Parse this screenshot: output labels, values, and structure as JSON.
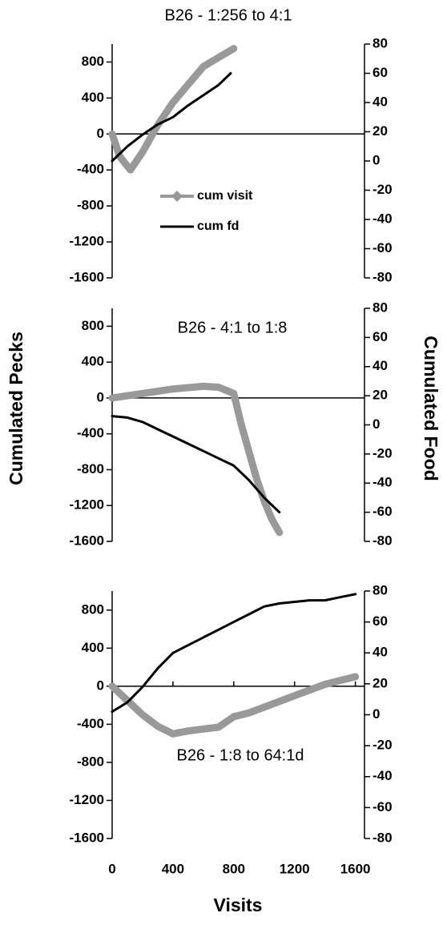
{
  "chart_data": [
    {
      "type": "line",
      "title": "B26 - 1:256 to 4:1",
      "xlim": [
        0,
        1660
      ],
      "ylim": [
        -1600,
        1000
      ],
      "yticks": [
        -1600,
        -1200,
        -800,
        -400,
        0,
        400,
        800
      ],
      "y2lim": [
        -80,
        80
      ],
      "y2ticks": [
        -80,
        -60,
        -40,
        -20,
        0,
        20,
        40,
        60,
        80
      ],
      "legend": "center",
      "series": [
        {
          "name": "cum visit",
          "color": "#999999",
          "axis": "y",
          "x": [
            0,
            50,
            120,
            200,
            300,
            400,
            500,
            600,
            700,
            800
          ],
          "values": [
            0,
            -250,
            -400,
            -200,
            100,
            350,
            550,
            750,
            850,
            950
          ]
        },
        {
          "name": "cum fd",
          "color": "#000000",
          "axis": "y2",
          "x": [
            0,
            100,
            200,
            300,
            400,
            500,
            600,
            700,
            780
          ],
          "values": [
            0,
            10,
            18,
            25,
            30,
            38,
            45,
            52,
            60
          ]
        }
      ]
    },
    {
      "type": "line",
      "title": "B26 - 4:1 to 1:8",
      "ylabel": "Cumulated Pecks",
      "y2label": "Cumulated Food",
      "xlim": [
        0,
        1660
      ],
      "ylim": [
        -1600,
        1000
      ],
      "yticks": [
        -1600,
        -1200,
        -800,
        -400,
        0,
        400,
        800
      ],
      "y2lim": [
        -80,
        80
      ],
      "y2ticks": [
        -80,
        -60,
        -40,
        -20,
        0,
        20,
        40,
        60,
        80
      ],
      "series": [
        {
          "color": "#999999",
          "axis": "y",
          "x": [
            0,
            200,
            400,
            600,
            700,
            800,
            850,
            900,
            950,
            1000,
            1050,
            1100
          ],
          "values": [
            0,
            50,
            100,
            130,
            120,
            50,
            -300,
            -600,
            -900,
            -1150,
            -1350,
            -1500
          ]
        },
        {
          "color": "#000000",
          "axis": "y2",
          "x": [
            0,
            100,
            200,
            300,
            400,
            500,
            600,
            700,
            800,
            900,
            1000,
            1100
          ],
          "values": [
            6,
            5,
            2,
            -3,
            -8,
            -13,
            -18,
            -23,
            -28,
            -38,
            -50,
            -60
          ]
        }
      ]
    },
    {
      "type": "line",
      "title": "B26 - 1:8 to 64:1d",
      "xlabel": "Visits",
      "xlim": [
        0,
        1660
      ],
      "xticks": [
        0,
        400,
        800,
        1200,
        1600
      ],
      "ylim": [
        -1600,
        1000
      ],
      "yticks": [
        -1600,
        -1200,
        -800,
        -400,
        0,
        400,
        800
      ],
      "y2lim": [
        -80,
        80
      ],
      "y2ticks": [
        -80,
        -60,
        -40,
        -20,
        0,
        20,
        40,
        60,
        80
      ],
      "series": [
        {
          "color": "#999999",
          "axis": "y",
          "x": [
            0,
            100,
            200,
            300,
            400,
            500,
            600,
            700,
            800,
            900,
            1000,
            1100,
            1200,
            1300,
            1400,
            1500,
            1600
          ],
          "values": [
            0,
            -150,
            -300,
            -420,
            -500,
            -470,
            -450,
            -430,
            -320,
            -280,
            -220,
            -160,
            -100,
            -40,
            20,
            60,
            100
          ]
        },
        {
          "color": "#000000",
          "axis": "y2",
          "x": [
            0,
            100,
            200,
            300,
            400,
            500,
            600,
            700,
            800,
            900,
            1000,
            1100,
            1200,
            1300,
            1400,
            1500,
            1600
          ],
          "values": [
            2,
            8,
            18,
            30,
            40,
            45,
            50,
            55,
            60,
            65,
            70,
            72,
            73,
            74,
            74,
            76,
            78
          ]
        }
      ]
    }
  ]
}
